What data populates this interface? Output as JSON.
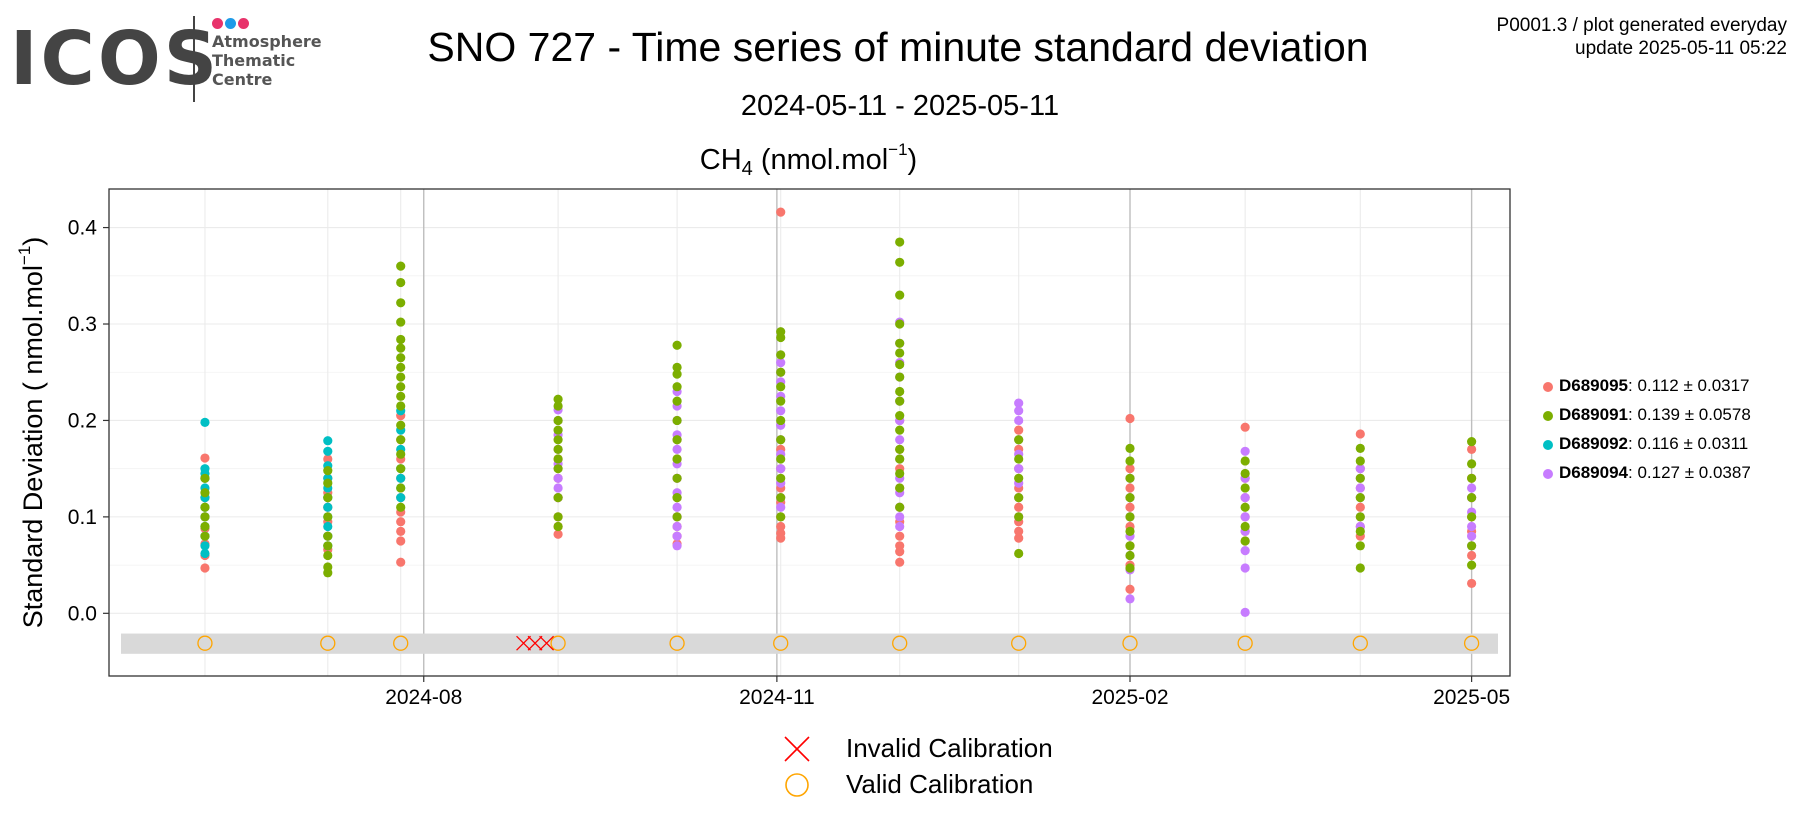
{
  "logo": {
    "text": "ICOS",
    "subtitle_lines": [
      "Atmosphere",
      "Thematic",
      "Centre"
    ],
    "dot_colors": [
      "#e8336b",
      "#1e9be8",
      "#e8336b"
    ]
  },
  "header": {
    "title": "SNO 727 - Time series of minute standard deviation",
    "subtitle": "2024-05-11 - 2025-05-11",
    "info_line1": "P0001.3 / plot generated everyday",
    "info_line2": "update  2025-05-11 05:22"
  },
  "chart_data": {
    "type": "scatter",
    "title_species": "CH",
    "title_sub": "4",
    "title_unit_pre": " (nmol.mol",
    "title_unit_sup": "−1",
    "title_unit_post": ")",
    "ylabel_pre": "Standard Deviation ( nmol.mol",
    "ylabel_sup": "−1",
    "ylabel_post": ")",
    "xlim": [
      "2024-05-11",
      "2025-05-11"
    ],
    "ylim": [
      -0.065,
      0.44
    ],
    "yticks": [
      0.0,
      0.1,
      0.2,
      0.3,
      0.4
    ],
    "ytick_labels": [
      "0.0",
      "0.1",
      "0.2",
      "0.3",
      "0.4"
    ],
    "xticks": [
      "2024-08-01",
      "2024-11-01",
      "2025-02-01",
      "2025-05-01"
    ],
    "xtick_labels": [
      "2024-08",
      "2024-11",
      "2025-02",
      "2025-05"
    ],
    "calibration_band": [
      -0.042,
      -0.021
    ],
    "calibration_y": -0.031,
    "series": [
      {
        "name": "D689095",
        "color": "#F8766D",
        "stats": ": 0.112 ± 0.0317",
        "points": [
          {
            "date": "2024-06-05",
            "values": [
              0.161,
              0.14,
              0.12,
              0.1,
              0.088,
              0.072,
              0.06,
              0.047
            ]
          },
          {
            "date": "2024-07-07",
            "values": [
              0.16,
              0.14,
              0.125,
              0.11,
              0.095,
              0.08,
              0.066
            ]
          },
          {
            "date": "2024-07-26",
            "values": [
              0.205,
              0.18,
              0.16,
              0.14,
              0.12,
              0.105,
              0.095,
              0.085,
              0.075,
              0.053
            ]
          },
          {
            "date": "2024-09-05",
            "values": [
              0.16,
              0.14,
              0.12,
              0.1,
              0.09,
              0.082
            ]
          },
          {
            "date": "2024-10-06",
            "values": [
              0.18,
              0.16,
              0.14,
              0.12,
              0.1,
              0.09,
              0.08,
              0.072
            ]
          },
          {
            "date": "2024-11-02",
            "values": [
              0.416,
              0.17,
              0.15,
              0.13,
              0.115,
              0.1,
              0.09,
              0.083,
              0.078
            ]
          },
          {
            "date": "2024-12-03",
            "values": [
              0.2,
              0.17,
              0.15,
              0.13,
              0.11,
              0.095,
              0.08,
              0.07,
              0.064,
              0.053
            ]
          },
          {
            "date": "2025-01-03",
            "values": [
              0.19,
              0.17,
              0.15,
              0.13,
              0.11,
              0.095,
              0.085,
              0.078
            ]
          },
          {
            "date": "2025-02-01",
            "values": [
              0.202,
              0.15,
              0.13,
              0.11,
              0.09,
              0.07,
              0.05,
              0.025
            ]
          },
          {
            "date": "2025-03-03",
            "values": [
              0.193,
              0.14,
              0.12,
              0.1,
              0.085,
              0.075
            ]
          },
          {
            "date": "2025-04-02",
            "values": [
              0.186,
              0.15,
              0.13,
              0.11,
              0.09,
              0.08
            ]
          },
          {
            "date": "2025-05-01",
            "values": [
              0.17,
              0.14,
              0.12,
              0.1,
              0.085,
              0.06,
              0.031
            ]
          }
        ]
      },
      {
        "name": "D689091",
        "color": "#7CAE00",
        "stats": ": 0.139 ± 0.0578",
        "points": [
          {
            "date": "2024-06-05",
            "values": [
              0.14,
              0.125,
              0.11,
              0.1,
              0.09,
              0.08
            ]
          },
          {
            "date": "2024-07-07",
            "values": [
              0.148,
              0.135,
              0.12,
              0.1,
              0.08,
              0.07,
              0.06,
              0.048,
              0.042
            ]
          },
          {
            "date": "2024-07-26",
            "values": [
              0.36,
              0.343,
              0.322,
              0.302,
              0.284,
              0.275,
              0.265,
              0.255,
              0.245,
              0.235,
              0.225,
              0.215,
              0.195,
              0.18,
              0.165,
              0.15,
              0.13,
              0.11
            ]
          },
          {
            "date": "2024-09-05",
            "values": [
              0.222,
              0.215,
              0.2,
              0.19,
              0.18,
              0.17,
              0.16,
              0.15,
              0.12,
              0.1,
              0.09
            ]
          },
          {
            "date": "2024-10-06",
            "values": [
              0.278,
              0.255,
              0.248,
              0.235,
              0.22,
              0.2,
              0.18,
              0.16,
              0.14,
              0.12,
              0.1
            ]
          },
          {
            "date": "2024-11-02",
            "values": [
              0.292,
              0.286,
              0.268,
              0.25,
              0.235,
              0.22,
              0.2,
              0.18,
              0.16,
              0.14,
              0.12,
              0.1
            ]
          },
          {
            "date": "2024-12-03",
            "values": [
              0.385,
              0.364,
              0.33,
              0.3,
              0.28,
              0.27,
              0.258,
              0.245,
              0.23,
              0.22,
              0.205,
              0.19,
              0.17,
              0.16,
              0.145,
              0.13,
              0.11
            ]
          },
          {
            "date": "2025-01-03",
            "values": [
              0.18,
              0.16,
              0.14,
              0.12,
              0.1,
              0.062
            ]
          },
          {
            "date": "2025-02-01",
            "values": [
              0.171,
              0.158,
              0.14,
              0.12,
              0.1,
              0.085,
              0.07,
              0.06,
              0.047
            ]
          },
          {
            "date": "2025-03-03",
            "values": [
              0.158,
              0.145,
              0.13,
              0.11,
              0.09,
              0.075
            ]
          },
          {
            "date": "2025-04-02",
            "values": [
              0.171,
              0.158,
              0.14,
              0.12,
              0.1,
              0.085,
              0.07,
              0.047
            ]
          },
          {
            "date": "2025-05-01",
            "values": [
              0.178,
              0.155,
              0.14,
              0.12,
              0.1,
              0.07,
              0.05
            ]
          }
        ]
      },
      {
        "name": "D689092",
        "color": "#00BFC4",
        "stats": ": 0.116 ± 0.0311",
        "points": [
          {
            "date": "2024-06-05",
            "values": [
              0.198,
              0.15,
              0.145,
              0.14,
              0.13,
              0.12,
              0.11,
              0.1,
              0.09,
              0.08,
              0.07,
              0.062
            ]
          },
          {
            "date": "2024-07-07",
            "values": [
              0.179,
              0.168,
              0.153,
              0.14,
              0.13,
              0.12,
              0.11,
              0.1,
              0.09,
              0.08,
              0.07
            ]
          },
          {
            "date": "2024-07-26",
            "values": [
              0.21,
              0.19,
              0.17,
              0.15,
              0.14,
              0.13,
              0.12
            ]
          }
        ]
      },
      {
        "name": "D689094",
        "color": "#C77CFF",
        "stats": ": 0.127 ± 0.0387",
        "points": [
          {
            "date": "2024-09-05",
            "values": [
              0.211,
              0.2,
              0.185,
              0.17,
              0.155,
              0.14,
              0.13,
              0.12
            ]
          },
          {
            "date": "2024-10-06",
            "values": [
              0.23,
              0.215,
              0.2,
              0.185,
              0.17,
              0.155,
              0.14,
              0.125,
              0.11,
              0.1,
              0.09,
              0.08,
              0.07
            ]
          },
          {
            "date": "2024-11-02",
            "values": [
              0.26,
              0.25,
              0.24,
              0.225,
              0.21,
              0.195,
              0.18,
              0.165,
              0.15,
              0.135,
              0.12,
              0.11
            ]
          },
          {
            "date": "2024-12-03",
            "values": [
              0.302,
              0.28,
              0.26,
              0.245,
              0.22,
              0.2,
              0.18,
              0.16,
              0.14,
              0.125,
              0.11,
              0.1,
              0.09
            ]
          },
          {
            "date": "2025-01-03",
            "values": [
              0.218,
              0.21,
              0.2,
              0.18,
              0.165,
              0.15,
              0.135,
              0.12,
              0.1
            ]
          },
          {
            "date": "2025-02-01",
            "values": [
              0.14,
              0.12,
              0.1,
              0.08,
              0.06,
              0.045,
              0.015
            ]
          },
          {
            "date": "2025-03-03",
            "values": [
              0.168,
              0.14,
              0.12,
              0.1,
              0.085,
              0.065,
              0.047,
              0.001
            ]
          },
          {
            "date": "2025-04-02",
            "values": [
              0.15,
              0.14,
              0.13,
              0.12,
              0.1,
              0.09
            ]
          },
          {
            "date": "2025-05-01",
            "values": [
              0.13,
              0.12,
              0.105,
              0.09,
              0.08,
              0.07
            ]
          }
        ]
      }
    ],
    "calibrations": {
      "invalid": [
        "2024-08-27",
        "2024-08-30",
        "2024-09-02"
      ],
      "valid": [
        "2024-06-05",
        "2024-07-07",
        "2024-07-26",
        "2024-09-05",
        "2024-10-06",
        "2024-11-02",
        "2024-12-03",
        "2025-01-03",
        "2025-02-01",
        "2025-03-03",
        "2025-04-02",
        "2025-05-01"
      ],
      "invalid_color": "#FF0000",
      "valid_color": "#FFA500"
    }
  },
  "legend": {
    "invalid_label": "Invalid Calibration",
    "valid_label": "Valid Calibration"
  }
}
